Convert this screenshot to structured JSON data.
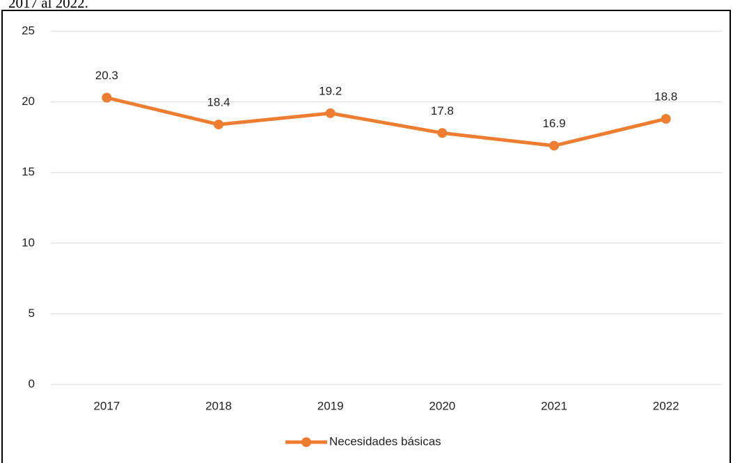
{
  "caption": "2017 al 2022.",
  "chart_data": {
    "type": "line",
    "categories": [
      "2017",
      "2018",
      "2019",
      "2020",
      "2021",
      "2022"
    ],
    "series": [
      {
        "name": "Necesidades básicas",
        "color": "#ed7d31",
        "values": [
          20.3,
          18.4,
          19.2,
          17.8,
          16.9,
          18.8
        ]
      }
    ],
    "ylim": [
      0,
      25
    ],
    "yticks": [
      0,
      5,
      10,
      15,
      20,
      25
    ],
    "grid": true,
    "legend": "bottom"
  }
}
